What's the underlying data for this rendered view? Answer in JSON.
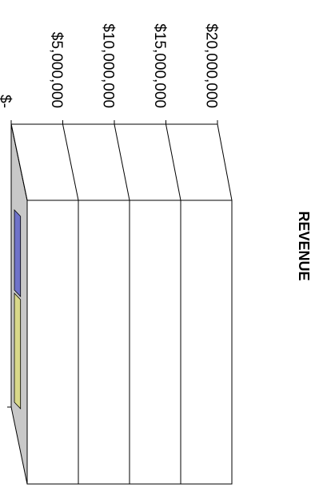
{
  "chart_data": {
    "type": "bar",
    "orientation": "rotated-90-clockwise",
    "style": "3d",
    "title": "REVENUE",
    "xlabel": "",
    "ylabel": "",
    "ylim": [
      0,
      20000000
    ],
    "yticks": [
      0,
      5000000,
      10000000,
      15000000,
      20000000
    ],
    "ytick_labels": [
      "$-",
      "$5,000,000",
      "$10,000,000",
      "$15,000,000",
      "$20,000,000"
    ],
    "grid": true,
    "categories": [
      ""
    ],
    "series": [
      {
        "values": [
          300000
        ],
        "color": "#6f73c9"
      },
      {
        "values": [
          300000
        ],
        "color": "#d9d98a"
      }
    ],
    "wall_color": "#c8c8c8"
  }
}
